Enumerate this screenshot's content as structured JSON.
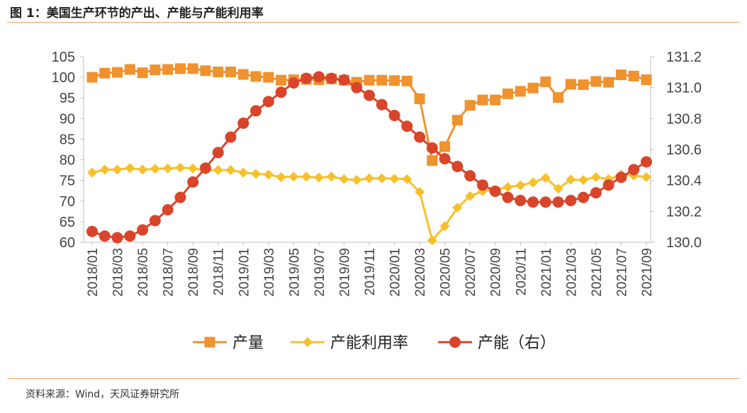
{
  "title": "图 1：美国生产环节的产出、产能与产能利用率",
  "source": "资料来源：Wind，天风证券研究所",
  "colors": {
    "output": "#F0922E",
    "utilization": "#F7C02B",
    "capacity": "#D9452A",
    "axis": "#bfbfbf",
    "rule": "#f0a060"
  },
  "chart_data": {
    "type": "line",
    "x": [
      "2018/01",
      "2018/02",
      "2018/03",
      "2018/04",
      "2018/05",
      "2018/06",
      "2018/07",
      "2018/08",
      "2018/09",
      "2018/10",
      "2018/11",
      "2018/12",
      "2019/01",
      "2019/02",
      "2019/03",
      "2019/04",
      "2019/05",
      "2019/06",
      "2019/07",
      "2019/08",
      "2019/09",
      "2019/10",
      "2019/11",
      "2019/12",
      "2020/01",
      "2020/02",
      "2020/03",
      "2020/04",
      "2020/05",
      "2020/06",
      "2020/07",
      "2020/08",
      "2020/09",
      "2020/10",
      "2020/11",
      "2020/12",
      "2021/01",
      "2021/02",
      "2021/03",
      "2021/04",
      "2021/05",
      "2021/06",
      "2021/07",
      "2021/08",
      "2021/09"
    ],
    "x_tick_labels": [
      "2018/01",
      "2018/03",
      "2018/05",
      "2018/07",
      "2018/09",
      "2018/11",
      "2019/01",
      "2019/03",
      "2019/05",
      "2019/07",
      "2019/09",
      "2019/11",
      "2020/01",
      "2020/03",
      "2020/05",
      "2020/07",
      "2020/09",
      "2020/11",
      "2021/01",
      "2021/03",
      "2021/05",
      "2021/07",
      "2021/09"
    ],
    "y_left": {
      "ylim": [
        60,
        105
      ],
      "ticks": [
        60,
        65,
        70,
        75,
        80,
        85,
        90,
        95,
        100,
        105
      ]
    },
    "y_right": {
      "ylim": [
        130.0,
        131.2
      ],
      "ticks": [
        "130.0",
        "130.2",
        "130.4",
        "130.6",
        "130.8",
        "131.0",
        "131.2"
      ]
    },
    "legend_placement": "bottom-center",
    "grid": false,
    "series": [
      {
        "name": "产量",
        "axis": "left",
        "marker": "square",
        "values": [
          100.0,
          101.0,
          101.2,
          101.9,
          101.1,
          101.8,
          101.9,
          102.1,
          102.1,
          101.6,
          101.3,
          101.3,
          100.7,
          100.2,
          100.0,
          99.3,
          99.4,
          99.5,
          99.4,
          99.6,
          99.3,
          98.8,
          99.3,
          99.3,
          99.2,
          99.1,
          94.8,
          79.8,
          83.2,
          89.6,
          93.2,
          94.5,
          94.5,
          96.0,
          96.6,
          97.4,
          98.9,
          95.1,
          98.3,
          98.2,
          99.0,
          98.8,
          100.6,
          100.3,
          99.4
        ]
      },
      {
        "name": "产能利用率",
        "axis": "left",
        "marker": "diamond",
        "values": [
          76.9,
          77.6,
          77.6,
          78.0,
          77.6,
          77.8,
          77.9,
          78.1,
          77.9,
          77.5,
          77.5,
          77.5,
          76.9,
          76.6,
          76.4,
          75.8,
          75.9,
          75.9,
          75.7,
          75.9,
          75.3,
          75.1,
          75.5,
          75.5,
          75.4,
          75.3,
          72.2,
          60.5,
          63.9,
          68.4,
          71.2,
          72.4,
          72.7,
          73.4,
          73.8,
          74.5,
          75.6,
          73.0,
          75.2,
          75.1,
          75.8,
          75.3,
          76.4,
          76.2,
          75.8
        ]
      },
      {
        "name": "产能（右）",
        "axis": "right",
        "marker": "circle",
        "values": [
          130.07,
          130.04,
          130.03,
          130.04,
          130.08,
          130.14,
          130.21,
          130.29,
          130.39,
          130.48,
          130.58,
          130.68,
          130.77,
          130.85,
          130.91,
          130.97,
          131.03,
          131.06,
          131.07,
          131.06,
          131.05,
          131.0,
          130.95,
          130.89,
          130.82,
          130.75,
          130.68,
          130.61,
          130.54,
          130.49,
          130.43,
          130.37,
          130.33,
          130.29,
          130.27,
          130.26,
          130.26,
          130.26,
          130.27,
          130.29,
          130.32,
          130.37,
          130.42,
          130.47,
          130.52
        ]
      }
    ]
  }
}
